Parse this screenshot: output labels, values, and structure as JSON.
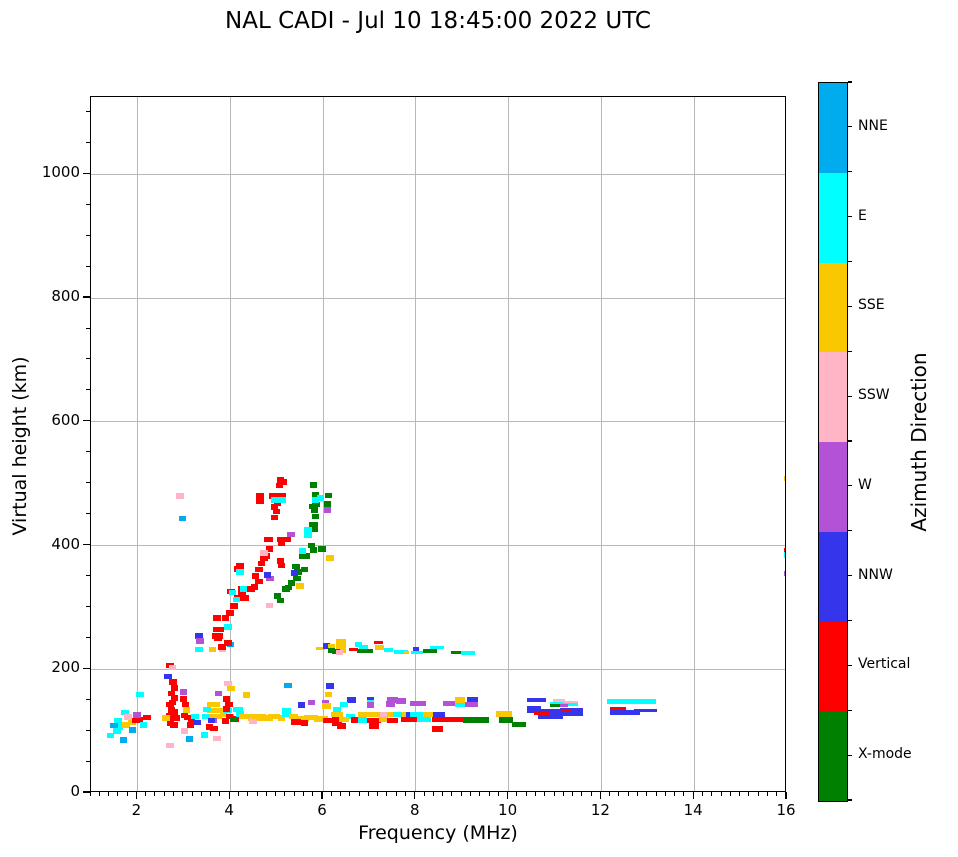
{
  "title": "NAL CADI - Jul 10 18:45:00 2022 UTC",
  "chart_data": {
    "type": "scatter",
    "title": "NAL CADI - Jul 10 18:45:00 2022 UTC",
    "xlabel": "Frequency (MHz)",
    "ylabel": "Virtual height (km)",
    "xlim": [
      1,
      16
    ],
    "ylim": [
      0,
      1125
    ],
    "xticks": [
      2,
      4,
      6,
      8,
      10,
      12,
      14,
      16
    ],
    "yticks": [
      0,
      200,
      400,
      600,
      800,
      1000
    ],
    "minor_x_step": 0.2,
    "minor_y_step": 50,
    "grid": true,
    "grid_color": "#b8b8b8",
    "colorbar": {
      "label": "Azimuth Direction",
      "position": "right",
      "categories": [
        {
          "label": "NNE",
          "color": "#00ACEE"
        },
        {
          "label": "E",
          "color": "#00FFFF"
        },
        {
          "label": "SSE",
          "color": "#FAC800"
        },
        {
          "label": "SSW",
          "color": "#FFB5C5"
        },
        {
          "label": "W",
          "color": "#B452D6"
        },
        {
          "label": "NNW",
          "color": "#3535EC"
        },
        {
          "label": "Vertical",
          "color": "#FF0000"
        },
        {
          "label": "X-mode",
          "color": "#008000"
        }
      ]
    },
    "point_format": "[freq_MHz, virtual_height_km, category_index, width_MHz(optional), height_extent_km(optional)]",
    "default_cell": {
      "width_mhz": 0.16,
      "height_km": 9
    },
    "points": [
      [
        1.42,
        93,
        1
      ],
      [
        1.58,
        116,
        1
      ],
      [
        1.61,
        107,
        1
      ],
      [
        1.56,
        100,
        1
      ],
      [
        1.5,
        109,
        0
      ],
      [
        1.73,
        130,
        1
      ],
      [
        1.7,
        86,
        0
      ],
      [
        1.75,
        110,
        2
      ],
      [
        1.8,
        123,
        3
      ],
      [
        1.88,
        114,
        2
      ],
      [
        1.9,
        102,
        0
      ],
      [
        1.97,
        117,
        6
      ],
      [
        2.04,
        118,
        6
      ],
      [
        2.06,
        159,
        1
      ],
      [
        1.99,
        126,
        4
      ],
      [
        2.13,
        110,
        1
      ],
      [
        2.21,
        122,
        6
      ],
      [
        2.7,
        206,
        6
      ],
      [
        2.76,
        203,
        3
      ],
      [
        2.66,
        188,
        5
      ],
      [
        2.77,
        179,
        6
      ],
      [
        2.8,
        170,
        6
      ],
      [
        2.73,
        161,
        6
      ],
      [
        2.8,
        154,
        6
      ],
      [
        2.76,
        146,
        6
      ],
      [
        2.7,
        143,
        6
      ],
      [
        2.74,
        134,
        6
      ],
      [
        2.8,
        131,
        6
      ],
      [
        2.69,
        125,
        6
      ],
      [
        2.76,
        122,
        6
      ],
      [
        2.83,
        121,
        6
      ],
      [
        2.71,
        113,
        6
      ],
      [
        2.79,
        110,
        6
      ],
      [
        2.62,
        121,
        2
      ],
      [
        2.7,
        77,
        3
      ],
      [
        2.99,
        163,
        4
      ],
      [
        2.99,
        152,
        6
      ],
      [
        3.04,
        143,
        6
      ],
      [
        3.06,
        134,
        2
      ],
      [
        3.01,
        125,
        6
      ],
      [
        3.09,
        122,
        6
      ],
      [
        3.16,
        118,
        6
      ],
      [
        3.24,
        124,
        1
      ],
      [
        3.3,
        114,
        5
      ],
      [
        3.14,
        110,
        6
      ],
      [
        3.44,
        94,
        1
      ],
      [
        3.12,
        87,
        0
      ],
      [
        3.02,
        100,
        3
      ],
      [
        2.92,
        480,
        3
      ],
      [
        2.97,
        444,
        0
      ],
      [
        3.58,
        143,
        2
      ],
      [
        3.7,
        143,
        2
      ],
      [
        3.58,
        133,
        2
      ],
      [
        3.7,
        133,
        2
      ],
      [
        3.8,
        133,
        2
      ],
      [
        3.62,
        124,
        2
      ],
      [
        3.74,
        124,
        2
      ],
      [
        3.85,
        128,
        2
      ],
      [
        3.5,
        135,
        1
      ],
      [
        3.48,
        124,
        1
      ],
      [
        3.95,
        133,
        1
      ],
      [
        4.0,
        124,
        1
      ],
      [
        3.92,
        152,
        6
      ],
      [
        3.97,
        143,
        6
      ],
      [
        3.92,
        136,
        6
      ],
      [
        3.98,
        124,
        6
      ],
      [
        3.9,
        116,
        6
      ],
      [
        3.55,
        107,
        6
      ],
      [
        3.65,
        104,
        6
      ],
      [
        3.75,
        161,
        4
      ],
      [
        3.63,
        117,
        4
      ],
      [
        4.02,
        169,
        2
      ],
      [
        3.95,
        177,
        3
      ],
      [
        3.72,
        88,
        3
      ],
      [
        3.6,
        117,
        5
      ],
      [
        4.1,
        120,
        6
      ],
      [
        3.33,
        254,
        5
      ],
      [
        3.35,
        246,
        4
      ],
      [
        3.33,
        232,
        1
      ],
      [
        3.62,
        232,
        2
      ],
      [
        3.84,
        232,
        3
      ],
      [
        4.01,
        240,
        0
      ],
      [
        3.95,
        242,
        6
      ],
      [
        3.72,
        283,
        6
      ],
      [
        3.7,
        264,
        6
      ],
      [
        3.78,
        264,
        6
      ],
      [
        3.68,
        254,
        6
      ],
      [
        3.76,
        254,
        6
      ],
      [
        3.74,
        250,
        6
      ],
      [
        3.82,
        236,
        6
      ],
      [
        4.0,
        291,
        6
      ],
      [
        3.9,
        283,
        6
      ],
      [
        4.02,
        326,
        6
      ],
      [
        4.08,
        302,
        6
      ],
      [
        4.17,
        315,
        6
      ],
      [
        4.25,
        320,
        6
      ],
      [
        4.25,
        330,
        6
      ],
      [
        4.33,
        315,
        6
      ],
      [
        4.17,
        362,
        6
      ],
      [
        4.21,
        367,
        6
      ],
      [
        4.21,
        357,
        1
      ],
      [
        4.45,
        330,
        6
      ],
      [
        4.52,
        333,
        6
      ],
      [
        4.55,
        351,
        6
      ],
      [
        4.62,
        342,
        6
      ],
      [
        4.62,
        361,
        6
      ],
      [
        4.67,
        371,
        6
      ],
      [
        4.73,
        380,
        6
      ],
      [
        4.78,
        383,
        6
      ],
      [
        4.85,
        394,
        6
      ],
      [
        4.85,
        410,
        6
      ],
      [
        4.8,
        410,
        6
      ],
      [
        5.08,
        410,
        6
      ],
      [
        5.1,
        403,
        6
      ],
      [
        5.22,
        410,
        6
      ],
      [
        5.08,
        375,
        6
      ],
      [
        5.1,
        368,
        6
      ],
      [
        4.95,
        445,
        6
      ],
      [
        5.0,
        455,
        6
      ],
      [
        4.95,
        462,
        6
      ],
      [
        5.02,
        468,
        6
      ],
      [
        4.92,
        480,
        6
      ],
      [
        5.05,
        480,
        6
      ],
      [
        5.12,
        480,
        6
      ],
      [
        4.64,
        480,
        6
      ],
      [
        4.64,
        472,
        6
      ],
      [
        5.06,
        497,
        6
      ],
      [
        5.08,
        506,
        6
      ],
      [
        5.15,
        503,
        6
      ],
      [
        4.29,
        330,
        1
      ],
      [
        4.05,
        324,
        1
      ],
      [
        4.14,
        313,
        1
      ],
      [
        4.95,
        474,
        1
      ],
      [
        5.12,
        474,
        1
      ],
      [
        3.95,
        268,
        1
      ],
      [
        4.73,
        388,
        3
      ],
      [
        4.85,
        303,
        3
      ],
      [
        5.31,
        418,
        4
      ],
      [
        4.86,
        347,
        4
      ],
      [
        4.8,
        352,
        5
      ],
      [
        5.02,
        318,
        7
      ],
      [
        5.08,
        311,
        7
      ],
      [
        5.2,
        330,
        7
      ],
      [
        5.26,
        332,
        7
      ],
      [
        5.32,
        339,
        7
      ],
      [
        5.44,
        347,
        7
      ],
      [
        5.46,
        357,
        7
      ],
      [
        5.6,
        361,
        7
      ],
      [
        5.42,
        366,
        7
      ],
      [
        5.57,
        383,
        7
      ],
      [
        5.64,
        383,
        7
      ],
      [
        5.75,
        400,
        7
      ],
      [
        5.8,
        393,
        7
      ],
      [
        5.8,
        430,
        7,
        0.2,
        16
      ],
      [
        5.84,
        447,
        7
      ],
      [
        5.82,
        457,
        7
      ],
      [
        5.78,
        463,
        7
      ],
      [
        5.85,
        466,
        7
      ],
      [
        5.84,
        482,
        7
      ],
      [
        5.8,
        498,
        7
      ],
      [
        5.98,
        394,
        7
      ],
      [
        6.1,
        464,
        7,
        0.16,
        16
      ],
      [
        6.12,
        481,
        7
      ],
      [
        5.5,
        335,
        2
      ],
      [
        6.15,
        380,
        2
      ],
      [
        5.39,
        356,
        5
      ],
      [
        6.1,
        457,
        4
      ],
      [
        5.68,
        425,
        1
      ],
      [
        5.68,
        416,
        1
      ],
      [
        5.56,
        391,
        1
      ],
      [
        5.84,
        474,
        1
      ],
      [
        5.94,
        477,
        1
      ],
      [
        5.95,
        234,
        2,
        0.2,
        5
      ],
      [
        6.08,
        238,
        5
      ],
      [
        6.18,
        236,
        2
      ],
      [
        6.38,
        238,
        2,
        0.22,
        22
      ],
      [
        6.18,
        230,
        7
      ],
      [
        6.28,
        229,
        7
      ],
      [
        6.35,
        227,
        3
      ],
      [
        6.65,
        232,
        6,
        0.2,
        5
      ],
      [
        6.76,
        240,
        1
      ],
      [
        6.88,
        236,
        1,
        0.2,
        6
      ],
      [
        6.9,
        229,
        7,
        0.35,
        6
      ],
      [
        7.2,
        243,
        6,
        0.2,
        5
      ],
      [
        7.22,
        235,
        2,
        0.2,
        7
      ],
      [
        7.41,
        231,
        1,
        0.2,
        6
      ],
      [
        7.68,
        228,
        1,
        0.3,
        6
      ],
      [
        7.8,
        227,
        2,
        0.12,
        6
      ],
      [
        8.0,
        232,
        5,
        0.14,
        7
      ],
      [
        8.03,
        227,
        1,
        0.25,
        6
      ],
      [
        8.31,
        229,
        7,
        0.3,
        6
      ],
      [
        8.45,
        235,
        1,
        0.3,
        6
      ],
      [
        8.88,
        227,
        7,
        0.25,
        6
      ],
      [
        9.13,
        226,
        1,
        0.3,
        6
      ],
      [
        4.08,
        119,
        7
      ],
      [
        4.17,
        135,
        1,
        0.2
      ],
      [
        4.21,
        128,
        1
      ],
      [
        4.35,
        124,
        2,
        0.3
      ],
      [
        4.5,
        121,
        2,
        0.25
      ],
      [
        4.49,
        116,
        3
      ],
      [
        4.62,
        124,
        2,
        0.3
      ],
      [
        4.78,
        121,
        2,
        0.3
      ],
      [
        4.95,
        124,
        2,
        0.25
      ],
      [
        5.1,
        121,
        2
      ],
      [
        5.22,
        130,
        1,
        0.2,
        14
      ],
      [
        5.36,
        124,
        2,
        0.2
      ],
      [
        5.55,
        120,
        2,
        0.3
      ],
      [
        5.75,
        122,
        2,
        0.3
      ],
      [
        5.95,
        120,
        2,
        0.3
      ],
      [
        6.12,
        117,
        6,
        0.25
      ],
      [
        6.3,
        112,
        6,
        0.2
      ],
      [
        5.42,
        115,
        6,
        0.2
      ],
      [
        5.6,
        113,
        6
      ],
      [
        4.35,
        158,
        2
      ],
      [
        5.25,
        174,
        0
      ],
      [
        5.54,
        142,
        5
      ],
      [
        5.75,
        146,
        4
      ],
      [
        6.15,
        173,
        5
      ],
      [
        6.12,
        159,
        2
      ],
      [
        6.05,
        146,
        4
      ],
      [
        6.08,
        141,
        2,
        0.2
      ],
      [
        6.3,
        134,
        1
      ],
      [
        6.62,
        150,
        5,
        0.2
      ],
      [
        7.02,
        151,
        5
      ],
      [
        7.02,
        146,
        1
      ],
      [
        7.02,
        142,
        4
      ],
      [
        6.45,
        143,
        1
      ],
      [
        7.5,
        150,
        4,
        0.25
      ],
      [
        7.45,
        144,
        4,
        0.2
      ],
      [
        8.05,
        145,
        4,
        0.35
      ],
      [
        7.68,
        149,
        4,
        0.2
      ],
      [
        8.72,
        145,
        4,
        0.25
      ],
      [
        8.95,
        143,
        1,
        0.2
      ],
      [
        8.95,
        150,
        2,
        0.2
      ],
      [
        9.22,
        150,
        5,
        0.25
      ],
      [
        9.2,
        143,
        4,
        0.3
      ],
      [
        6.3,
        127,
        2,
        0.25
      ],
      [
        6.6,
        124,
        1,
        0.2
      ],
      [
        6.85,
        127,
        2,
        0.2
      ],
      [
        7.1,
        127,
        2,
        0.3
      ],
      [
        7.3,
        127,
        3
      ],
      [
        7.45,
        127,
        2
      ],
      [
        7.6,
        127,
        1,
        0.2
      ],
      [
        7.78,
        127,
        2
      ],
      [
        7.88,
        126,
        5,
        0.2
      ],
      [
        8.02,
        124,
        1,
        0.3,
        13
      ],
      [
        8.28,
        127,
        2,
        0.25
      ],
      [
        8.5,
        126,
        5,
        0.25
      ],
      [
        6.28,
        118,
        6
      ],
      [
        6.45,
        119,
        2,
        0.2
      ],
      [
        6.68,
        118,
        6
      ],
      [
        6.85,
        118,
        1,
        0.2
      ],
      [
        7.1,
        117,
        6,
        0.3
      ],
      [
        7.3,
        119,
        2,
        0.2
      ],
      [
        7.5,
        117,
        6,
        0.25
      ],
      [
        7.85,
        119,
        6,
        0.35
      ],
      [
        8.18,
        119,
        1,
        0.3
      ],
      [
        8.7,
        119,
        6,
        0.7
      ],
      [
        9.3,
        118,
        7,
        0.55
      ],
      [
        9.95,
        118,
        7,
        0.3
      ],
      [
        10.22,
        111,
        7,
        0.3
      ],
      [
        6.4,
        108,
        6,
        0.2
      ],
      [
        7.1,
        108,
        6,
        0.2
      ],
      [
        8.47,
        103,
        6,
        0.25
      ],
      [
        9.9,
        128,
        2,
        0.35
      ],
      [
        10.6,
        150,
        5,
        0.4,
        6
      ],
      [
        10.55,
        135,
        5,
        0.3,
        10
      ],
      [
        10.9,
        127,
        5,
        0.55,
        16
      ],
      [
        10.72,
        129,
        6,
        0.33,
        5
      ],
      [
        11.08,
        150,
        3,
        0.25,
        5
      ],
      [
        11.05,
        145,
        1,
        0.3,
        5
      ],
      [
        11.35,
        147,
        3,
        0.3,
        5
      ],
      [
        11.32,
        143,
        1,
        0.35,
        5
      ],
      [
        11.35,
        131,
        5,
        0.5,
        14
      ],
      [
        11.25,
        133,
        6,
        0.2,
        5
      ],
      [
        11.12,
        141,
        4,
        0.3,
        5
      ],
      [
        11.0,
        141,
        7,
        0.2,
        5
      ],
      [
        12.65,
        148,
        1,
        1.05,
        7
      ],
      [
        12.35,
        137,
        6,
        0.35,
        5
      ],
      [
        12.5,
        130,
        5,
        0.65,
        9
      ],
      [
        12.95,
        134,
        5,
        0.5,
        5
      ],
      [
        16.0,
        508,
        2,
        0.12
      ],
      [
        16.0,
        392,
        6,
        0.12
      ],
      [
        16.0,
        385,
        1,
        0.12
      ],
      [
        16.0,
        355,
        4,
        0.12
      ]
    ]
  }
}
